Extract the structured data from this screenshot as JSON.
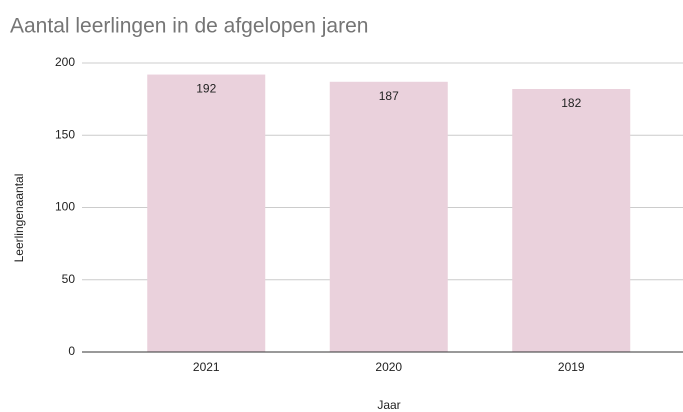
{
  "chart_data": {
    "type": "bar",
    "title": "Aantal leerlingen in de afgelopen jaren",
    "categories": [
      "2021",
      "2020",
      "2019"
    ],
    "values": [
      192,
      187,
      182
    ],
    "color": "#ead1dc",
    "xlabel": "Jaar",
    "ylabel": "Leerlingenaantal",
    "ylim": [
      0,
      200
    ],
    "yticks": [
      0,
      50,
      100,
      150,
      200
    ],
    "grid": true
  }
}
